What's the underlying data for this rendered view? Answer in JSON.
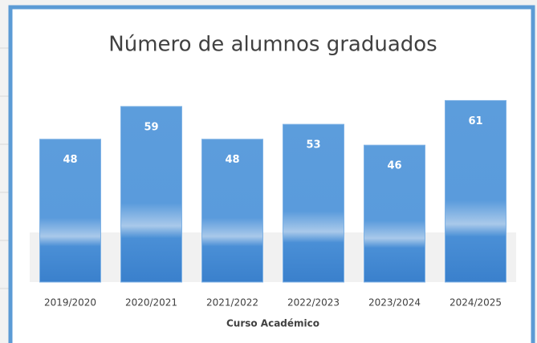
{
  "chart_data": {
    "type": "bar",
    "title": "Número de alumnos graduados",
    "x_label": "Curso Académico",
    "categories": [
      "2019/2020",
      "2020/2021",
      "2021/2022",
      "2022/2023",
      "2023/2024",
      "2024/2025"
    ],
    "values": [
      48,
      59,
      48,
      53,
      46,
      61
    ],
    "color": "#4a8fd6",
    "ylim": [
      0,
      70
    ]
  }
}
